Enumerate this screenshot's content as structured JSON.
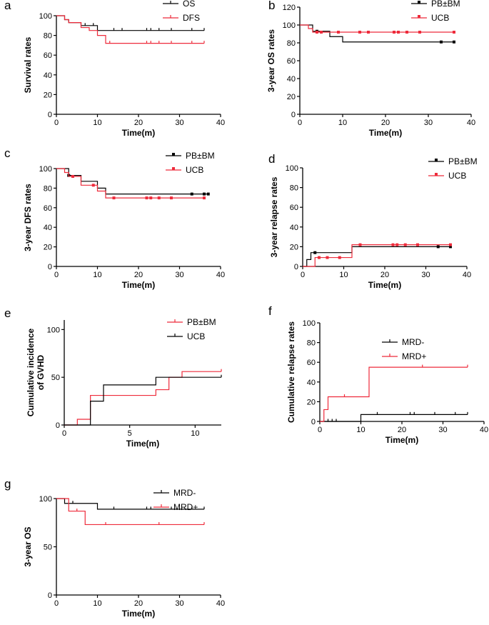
{
  "chart_data": [
    {
      "id": "a",
      "letter": "a",
      "type": "line",
      "xlabel": "Time(m)",
      "ylabel": [
        "Survival rates"
      ],
      "xlim": [
        0,
        40
      ],
      "ylim": [
        0,
        100
      ],
      "xticks": [
        0,
        10,
        20,
        30,
        40
      ],
      "yticks": [
        0,
        20,
        40,
        60,
        80,
        100
      ],
      "legend": "top-right",
      "series": [
        {
          "name": "OS",
          "color": "#000000",
          "marker": "tick",
          "steps": [
            [
              0,
              100
            ],
            [
              2,
              96
            ],
            [
              3,
              93
            ],
            [
              6,
              90
            ],
            [
              10,
              85
            ],
            [
              36,
              85
            ]
          ],
          "censored": [
            7,
            9,
            14,
            16,
            22,
            23,
            25,
            28,
            33,
            36
          ]
        },
        {
          "name": "DFS",
          "color": "#ee2b3b",
          "marker": "tick",
          "steps": [
            [
              0,
              100
            ],
            [
              2,
              96
            ],
            [
              3,
              93
            ],
            [
              6,
              88
            ],
            [
              8,
              85
            ],
            [
              10,
              80
            ],
            [
              12,
              72
            ],
            [
              36,
              72
            ]
          ],
          "censored": [
            13,
            22,
            23,
            25,
            28,
            33,
            36
          ]
        }
      ]
    },
    {
      "id": "b",
      "letter": "b",
      "type": "line",
      "xlabel": "Time(m)",
      "ylabel": [
        "3-year OS rates"
      ],
      "xlim": [
        0,
        40
      ],
      "ylim": [
        0,
        120
      ],
      "xticks": [
        0,
        10,
        20,
        30,
        40
      ],
      "yticks": [
        0,
        20,
        40,
        60,
        80,
        100,
        120
      ],
      "legend": "top-right",
      "series": [
        {
          "name": "PB±BM",
          "color": "#000000",
          "marker": "square",
          "steps": [
            [
              0,
              100
            ],
            [
              3,
              93
            ],
            [
              7,
              87
            ],
            [
              10,
              81
            ],
            [
              36,
              81
            ]
          ],
          "censored": [
            4,
            33,
            36
          ]
        },
        {
          "name": "UCB",
          "color": "#ee2b3b",
          "marker": "square",
          "steps": [
            [
              0,
              100
            ],
            [
              2,
              96
            ],
            [
              3,
              92
            ],
            [
              36,
              92
            ]
          ],
          "censored": [
            4,
            5,
            9,
            14,
            16,
            22,
            23,
            25,
            28,
            36
          ]
        }
      ]
    },
    {
      "id": "c",
      "letter": "c",
      "type": "line",
      "xlabel": "Time(m)",
      "ylabel": [
        "3-year DFS rates"
      ],
      "xlim": [
        0,
        40
      ],
      "ylim": [
        0,
        100
      ],
      "xticks": [
        0,
        10,
        20,
        30,
        40
      ],
      "yticks": [
        0,
        20,
        40,
        60,
        80,
        100
      ],
      "legend": "top-right",
      "series": [
        {
          "name": "PB±BM",
          "color": "#000000",
          "marker": "square",
          "steps": [
            [
              0,
              100
            ],
            [
              3,
              93
            ],
            [
              6,
              87
            ],
            [
              10,
              80
            ],
            [
              12,
              74
            ],
            [
              37,
              74
            ]
          ],
          "censored": [
            3,
            33,
            36,
            37
          ]
        },
        {
          "name": "UCB",
          "color": "#ee2b3b",
          "marker": "square",
          "steps": [
            [
              0,
              100
            ],
            [
              2,
              96
            ],
            [
              3,
              92
            ],
            [
              6,
              83
            ],
            [
              10,
              77
            ],
            [
              12,
              70
            ],
            [
              36,
              70
            ]
          ],
          "censored": [
            4,
            9,
            14,
            22,
            23,
            25,
            28,
            36
          ]
        }
      ]
    },
    {
      "id": "d",
      "letter": "d",
      "type": "line",
      "xlabel": "Time(m)",
      "ylabel": [
        "3-year relapse rates"
      ],
      "xlim": [
        0,
        40
      ],
      "ylim": [
        0,
        100
      ],
      "xticks": [
        0,
        10,
        20,
        30,
        40
      ],
      "yticks": [
        0,
        20,
        40,
        60,
        80,
        100
      ],
      "legend": "top-right",
      "series": [
        {
          "name": "PB±BM",
          "color": "#000000",
          "marker": "square",
          "steps": [
            [
              0,
              0
            ],
            [
              1,
              7
            ],
            [
              2,
              14
            ],
            [
              12,
              20
            ],
            [
              36,
              20
            ]
          ],
          "censored": [
            3,
            33,
            36
          ]
        },
        {
          "name": "UCB",
          "color": "#ee2b3b",
          "marker": "square",
          "steps": [
            [
              0,
              0
            ],
            [
              3,
              9
            ],
            [
              12,
              22
            ],
            [
              36,
              22
            ]
          ],
          "censored": [
            4,
            6,
            9,
            14,
            22,
            23,
            25,
            28,
            36
          ]
        }
      ]
    },
    {
      "id": "e",
      "letter": "e",
      "type": "line",
      "xlabel": "Time(m)",
      "ylabel": [
        "Cumulative incidence",
        "of GVHD"
      ],
      "xlim": [
        0,
        12
      ],
      "ylim": [
        0,
        110
      ],
      "xticks": [
        0,
        5,
        10
      ],
      "yticks": [
        0,
        50,
        100
      ],
      "legend": "top-right",
      "series": [
        {
          "name": "PB±BM",
          "color": "#ee2b3b",
          "marker": "tick",
          "steps": [
            [
              0,
              0
            ],
            [
              1,
              6
            ],
            [
              2,
              31
            ],
            [
              7,
              31
            ],
            [
              7,
              37
            ],
            [
              8,
              37
            ],
            [
              8,
              50
            ],
            [
              9,
              50
            ],
            [
              9,
              56
            ],
            [
              12,
              56
            ]
          ],
          "censored": [
            12
          ]
        },
        {
          "name": "UCB",
          "color": "#000000",
          "marker": "tick",
          "steps": [
            [
              0,
              0
            ],
            [
              2,
              0
            ],
            [
              2,
              25
            ],
            [
              3,
              25
            ],
            [
              3,
              42
            ],
            [
              7,
              42
            ],
            [
              7,
              50
            ],
            [
              12,
              50
            ]
          ],
          "censored": [
            12
          ]
        }
      ]
    },
    {
      "id": "f",
      "letter": "f",
      "type": "line",
      "xlabel": "Time(m)",
      "ylabel": [
        "Cumulative relapse rates"
      ],
      "xlim": [
        0,
        40
      ],
      "ylim": [
        0,
        100
      ],
      "xticks": [
        0,
        10,
        20,
        30,
        40
      ],
      "yticks": [
        0,
        20,
        40,
        60,
        80,
        100
      ],
      "legend": "top-right",
      "series": [
        {
          "name": "MRD-",
          "color": "#000000",
          "marker": "tick",
          "steps": [
            [
              0,
              0
            ],
            [
              10,
              0
            ],
            [
              10,
              7
            ],
            [
              36,
              7
            ]
          ],
          "censored": [
            2,
            3,
            4,
            14,
            22,
            23,
            28,
            33,
            36
          ]
        },
        {
          "name": "MRD+",
          "color": "#ee2b3b",
          "marker": "tick",
          "steps": [
            [
              0,
              0
            ],
            [
              1,
              12
            ],
            [
              2,
              25
            ],
            [
              12,
              25
            ],
            [
              12,
              55
            ],
            [
              36,
              55
            ]
          ],
          "censored": [
            6,
            25,
            36
          ]
        }
      ]
    },
    {
      "id": "g",
      "letter": "g",
      "type": "line",
      "xlabel": "Time(m)",
      "ylabel": [
        "3-year OS"
      ],
      "xlim": [
        0,
        40
      ],
      "ylim": [
        0,
        100
      ],
      "xticks": [
        0,
        10,
        20,
        30,
        40
      ],
      "yticks": [
        0,
        50,
        100
      ],
      "legend": "top-left",
      "series": [
        {
          "name": "MRD-",
          "color": "#000000",
          "marker": "tick",
          "steps": [
            [
              0,
              100
            ],
            [
              2,
              95
            ],
            [
              10,
              89
            ],
            [
              36,
              89
            ]
          ],
          "censored": [
            4,
            14,
            22,
            23,
            28,
            33,
            36
          ]
        },
        {
          "name": "MRD+",
          "color": "#ee2b3b",
          "marker": "tick",
          "steps": [
            [
              0,
              100
            ],
            [
              3,
              87
            ],
            [
              7,
              73
            ],
            [
              36,
              73
            ]
          ],
          "censored": [
            5,
            12,
            25,
            36
          ]
        }
      ]
    }
  ]
}
